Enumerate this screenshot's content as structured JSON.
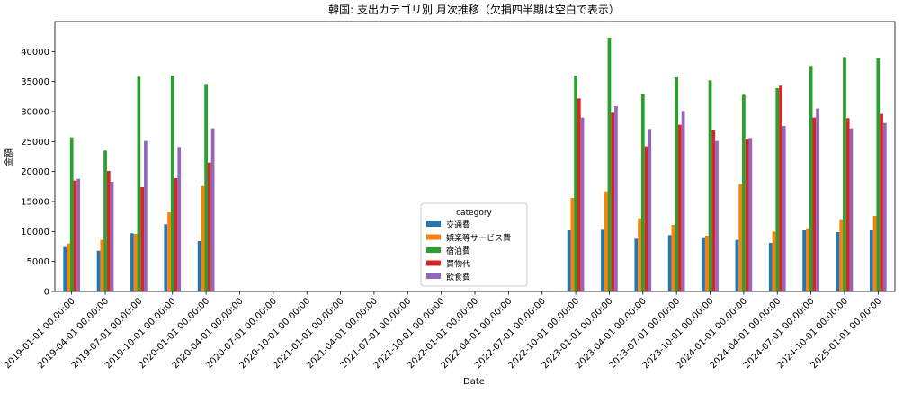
{
  "chart_data": {
    "type": "bar",
    "title": "韓国: 支出カテゴリ別 月次推移（欠損四半期は空白で表示）",
    "xlabel": "Date",
    "ylabel": "金額",
    "ylim": [
      0,
      45000
    ],
    "yticks": [
      0,
      5000,
      10000,
      15000,
      20000,
      25000,
      30000,
      35000,
      40000
    ],
    "grid": false,
    "legend_title": "category",
    "legend_position": "lower center",
    "categories": [
      "2019-01-01 00:00:00",
      "2019-04-01 00:00:00",
      "2019-07-01 00:00:00",
      "2019-10-01 00:00:00",
      "2020-01-01 00:00:00",
      "2020-04-01 00:00:00",
      "2020-07-01 00:00:00",
      "2020-10-01 00:00:00",
      "2021-01-01 00:00:00",
      "2021-04-01 00:00:00",
      "2021-07-01 00:00:00",
      "2021-10-01 00:00:00",
      "2022-01-01 00:00:00",
      "2022-04-01 00:00:00",
      "2022-07-01 00:00:00",
      "2022-10-01 00:00:00",
      "2023-01-01 00:00:00",
      "2023-04-01 00:00:00",
      "2023-07-01 00:00:00",
      "2023-10-01 00:00:00",
      "2024-01-01 00:00:00",
      "2024-04-01 00:00:00",
      "2024-07-01 00:00:00",
      "2024-10-01 00:00:00",
      "2025-01-01 00:00:00"
    ],
    "series": [
      {
        "name": "交通費",
        "color": "#1f77b4",
        "values": [
          7400,
          6800,
          9700,
          11200,
          8400,
          null,
          null,
          null,
          null,
          null,
          null,
          null,
          null,
          null,
          null,
          10200,
          10300,
          8800,
          9400,
          8900,
          8600,
          8100,
          10200,
          9900,
          10200
        ]
      },
      {
        "name": "娯楽等サービス費",
        "color": "#ff7f0e",
        "values": [
          8000,
          8600,
          9600,
          13200,
          17600,
          null,
          null,
          null,
          null,
          null,
          null,
          null,
          null,
          null,
          null,
          15600,
          16700,
          12200,
          11100,
          9300,
          17900,
          10000,
          10400,
          11900,
          12600
        ]
      },
      {
        "name": "宿泊費",
        "color": "#2ca02c",
        "values": [
          25700,
          23500,
          35800,
          36000,
          34600,
          null,
          null,
          null,
          null,
          null,
          null,
          null,
          null,
          null,
          null,
          36000,
          42300,
          32900,
          35700,
          35200,
          32800,
          33900,
          37600,
          39100,
          38900
        ]
      },
      {
        "name": "買物代",
        "color": "#d62728",
        "values": [
          18500,
          20100,
          17400,
          18900,
          21500,
          null,
          null,
          null,
          null,
          null,
          null,
          null,
          null,
          null,
          null,
          32200,
          29800,
          24200,
          27800,
          26900,
          25500,
          34300,
          29000,
          28900,
          29600
        ]
      },
      {
        "name": "飲食費",
        "color": "#9467bd",
        "values": [
          18800,
          18300,
          25100,
          24100,
          27200,
          null,
          null,
          null,
          null,
          null,
          null,
          null,
          null,
          null,
          null,
          29000,
          30900,
          27100,
          30100,
          25100,
          25600,
          27600,
          30500,
          27200,
          28100
        ]
      }
    ]
  }
}
